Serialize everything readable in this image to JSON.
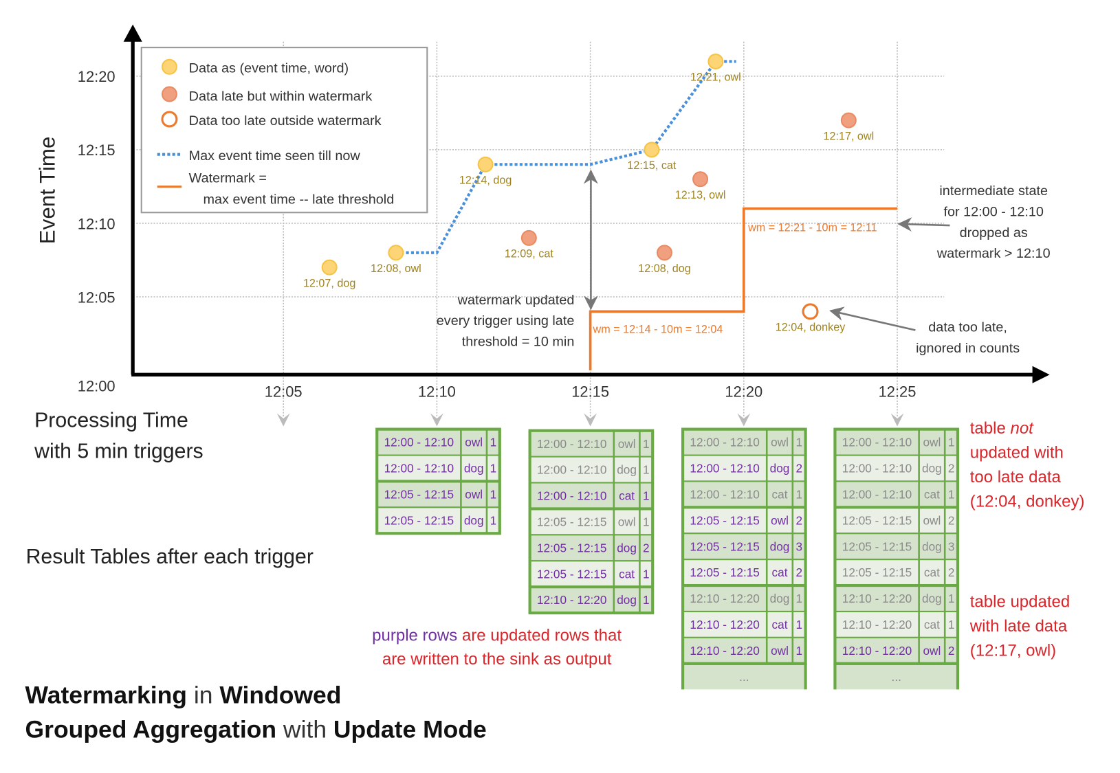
{
  "axes": {
    "y_label": "Event Time",
    "y_ticks": [
      "12:00",
      "12:05",
      "12:10",
      "12:15",
      "12:20"
    ],
    "x_ticks": [
      "12:05",
      "12:10",
      "12:15",
      "12:20",
      "12:25"
    ],
    "x_label_line1": "Processing Time",
    "x_label_line2": "with 5 min triggers"
  },
  "legend": {
    "on_time": "Data as (event time, word)",
    "late_within": "Data late but within watermark",
    "too_late": "Data too late outside watermark",
    "max_event": "Max event time seen till now",
    "watermark_1": "Watermark =",
    "watermark_2": "max event time -- late threshold"
  },
  "points": [
    {
      "label": "12:07, dog",
      "event_time": "12:07",
      "processing_time": "12:06:30",
      "kind": "on_time"
    },
    {
      "label": "12:08, owl",
      "event_time": "12:08",
      "processing_time": "12:08:40",
      "kind": "on_time"
    },
    {
      "label": "12:14, dog",
      "event_time": "12:14",
      "processing_time": "12:11:35",
      "kind": "on_time"
    },
    {
      "label": "12:09, cat",
      "event_time": "12:09",
      "processing_time": "12:13:00",
      "kind": "late_within"
    },
    {
      "label": "12:15, cat",
      "event_time": "12:15",
      "processing_time": "12:17:00",
      "kind": "on_time"
    },
    {
      "label": "12:08, dog",
      "event_time": "12:08",
      "processing_time": "12:17:25",
      "kind": "late_within"
    },
    {
      "label": "12:13, owl",
      "event_time": "12:13",
      "processing_time": "12:18:35",
      "kind": "late_within"
    },
    {
      "label": "12:21, owl",
      "event_time": "12:21",
      "processing_time": "12:19:05",
      "kind": "on_time"
    },
    {
      "label": "12:04, donkey",
      "event_time": "12:04",
      "processing_time": "12:22:10",
      "kind": "too_late"
    },
    {
      "label": "12:17, owl",
      "event_time": "12:17",
      "processing_time": "12:23:25",
      "kind": "late_within"
    }
  ],
  "max_event_line": [
    [
      "12:08:40",
      "12:08"
    ],
    [
      "12:10:00",
      "12:08"
    ],
    [
      "12:11:35",
      "12:14"
    ],
    [
      "12:15:00",
      "12:14"
    ],
    [
      "12:17:00",
      "12:15"
    ],
    [
      "12:19:05",
      "12:21"
    ],
    [
      "12:19:45",
      "12:21"
    ]
  ],
  "watermark_line": [
    [
      "12:15:00",
      "12:00"
    ],
    [
      "12:15:00",
      "12:04"
    ],
    [
      "12:20:00",
      "12:04"
    ],
    [
      "12:20:00",
      "12:11"
    ],
    [
      "12:25:00",
      "12:11"
    ]
  ],
  "watermark_labels": [
    "wm = 12:14 - 10m = 12:04",
    "wm = 12:21 - 10m = 12:11"
  ],
  "annotations": {
    "wm_updated": [
      "watermark updated",
      "every trigger using late",
      "threshold = 10 min"
    ],
    "intermediate": [
      "intermediate state",
      "for 12:00 - 12:10",
      "dropped as",
      "watermark > 12:10"
    ],
    "too_late": [
      "data too late,",
      "ignored in counts"
    ]
  },
  "result_tables_label": "Result Tables after each trigger",
  "tables": [
    {
      "trigger": "12:10",
      "rows": [
        [
          "12:00 - 12:10",
          "owl",
          "1",
          true
        ],
        [
          "12:00 - 12:10",
          "dog",
          "1",
          true
        ],
        [
          "12:05 - 12:15",
          "owl",
          "1",
          true
        ],
        [
          "12:05 - 12:15",
          "dog",
          "1",
          true
        ]
      ]
    },
    {
      "trigger": "12:15",
      "rows": [
        [
          "12:00 - 12:10",
          "owl",
          "1",
          false
        ],
        [
          "12:00 - 12:10",
          "dog",
          "1",
          false
        ],
        [
          "12:00 - 12:10",
          "cat",
          "1",
          true
        ],
        [
          "12:05 - 12:15",
          "owl",
          "1",
          false
        ],
        [
          "12:05 - 12:15",
          "dog",
          "2",
          true
        ],
        [
          "12:05 - 12:15",
          "cat",
          "1",
          true
        ],
        [
          "12:10 - 12:20",
          "dog",
          "1",
          true
        ]
      ]
    },
    {
      "trigger": "12:20",
      "more": "...",
      "rows": [
        [
          "12:00 - 12:10",
          "owl",
          "1",
          false
        ],
        [
          "12:00 - 12:10",
          "dog",
          "2",
          true
        ],
        [
          "12:00 - 12:10",
          "cat",
          "1",
          false
        ],
        [
          "12:05 - 12:15",
          "owl",
          "2",
          true
        ],
        [
          "12:05 - 12:15",
          "dog",
          "3",
          true
        ],
        [
          "12:05 - 12:15",
          "cat",
          "2",
          true
        ],
        [
          "12:10 - 12:20",
          "dog",
          "1",
          false
        ],
        [
          "12:10 - 12:20",
          "cat",
          "1",
          true
        ],
        [
          "12:10 - 12:20",
          "owl",
          "1",
          true
        ]
      ]
    },
    {
      "trigger": "12:25",
      "more": "...",
      "rows": [
        [
          "12:00 - 12:10",
          "owl",
          "1",
          false
        ],
        [
          "12:00 - 12:10",
          "dog",
          "2",
          false
        ],
        [
          "12:00 - 12:10",
          "cat",
          "1",
          false
        ],
        [
          "12:05 - 12:15",
          "owl",
          "2",
          false
        ],
        [
          "12:05 - 12:15",
          "dog",
          "3",
          false
        ],
        [
          "12:05 - 12:15",
          "cat",
          "2",
          false
        ],
        [
          "12:10 - 12:20",
          "dog",
          "1",
          false
        ],
        [
          "12:10 - 12:20",
          "cat",
          "1",
          false
        ],
        [
          "12:10 - 12:20",
          "owl",
          "2",
          true
        ]
      ]
    }
  ],
  "notes": {
    "not_updated": [
      "table ",
      "not",
      "updated with",
      "too late data",
      "(12:04, donkey)"
    ],
    "updated": [
      "table updated",
      "with late data",
      "(12:17, owl)"
    ],
    "purple_rows_a": "purple rows",
    "purple_rows_b": " are updated rows that",
    "purple_rows_c": "are written to the sink as output"
  },
  "title": {
    "line1": [
      [
        "Watermarking",
        true
      ],
      [
        " in ",
        false
      ],
      [
        "Windowed",
        true
      ]
    ],
    "line2": [
      [
        "Grouped Aggregation",
        true
      ],
      [
        " with ",
        false
      ],
      [
        "Update Mode",
        true
      ]
    ]
  },
  "colors": {
    "on_time_fill": "#fdd577",
    "on_time_stroke": "#f6c344",
    "late_fill": "#f0a07f",
    "late_stroke": "#e98a63",
    "too_late_stroke": "#ec7a2c",
    "max_event": "#4a90d9",
    "watermark": "#ec7a2c",
    "table_border": "#6aaa45",
    "row_dark": "#d6e3cc",
    "row_light": "#ebf0e6",
    "updated_text": "#7030a0",
    "stale_text": "#8a8a8a",
    "note_red": "#d9262b"
  }
}
